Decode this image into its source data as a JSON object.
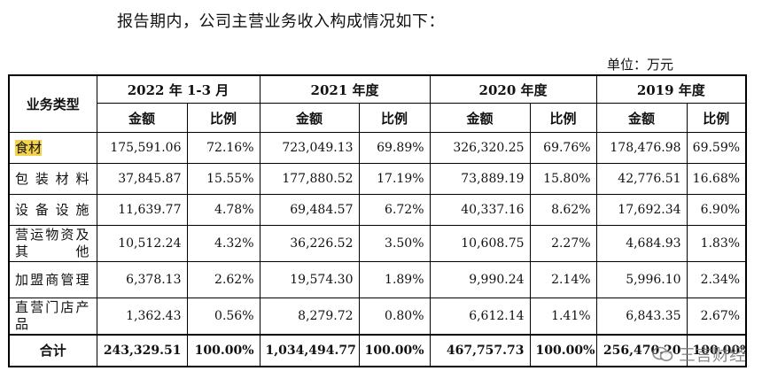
{
  "intro": "报告期内，公司主营业务收入构成情况如下：",
  "unit": "单位：万元",
  "table": {
    "category_header": "业务类型",
    "periods": [
      "2022 年 1-3 月",
      "2021 年度",
      "2020 年度",
      "2019 年度"
    ],
    "amount_label": "金额",
    "ratio_label": "比例",
    "rows": [
      {
        "category": "食材",
        "highlight": true,
        "values": [
          "175,591.06",
          "72.16%",
          "723,049.13",
          "69.89%",
          "326,320.25",
          "69.76%",
          "178,476.98",
          "69.59%"
        ]
      },
      {
        "category": "包装材料",
        "values": [
          "37,845.87",
          "15.55%",
          "177,880.52",
          "17.19%",
          "73,889.19",
          "15.80%",
          "42,776.51",
          "16.68%"
        ]
      },
      {
        "category": "设备设施",
        "values": [
          "11,639.77",
          "4.78%",
          "69,484.57",
          "6.72%",
          "40,337.16",
          "8.62%",
          "17,692.34",
          "6.90%"
        ]
      },
      {
        "category": "营运物资及其他",
        "values": [
          "10,512.24",
          "4.32%",
          "36,226.52",
          "3.50%",
          "10,608.75",
          "2.27%",
          "4,684.93",
          "1.83%"
        ]
      },
      {
        "category": "加盟商管理",
        "values": [
          "6,378.13",
          "2.62%",
          "19,574.30",
          "1.89%",
          "9,990.24",
          "2.14%",
          "5,996.10",
          "2.34%"
        ]
      },
      {
        "category": "直营门店产品",
        "values": [
          "1,362.43",
          "0.56%",
          "8,279.72",
          "0.80%",
          "6,612.14",
          "1.41%",
          "6,843.35",
          "2.67%"
        ]
      }
    ],
    "total": {
      "category": "合计",
      "values": [
        "243,329.51",
        "100.00%",
        "1,034,494.77",
        "100.00%",
        "467,757.73",
        "100.00%",
        "256,470.20",
        "100.00%"
      ]
    }
  },
  "watermark": {
    "text": "三言财经",
    "icon": "wechat-icon"
  }
}
